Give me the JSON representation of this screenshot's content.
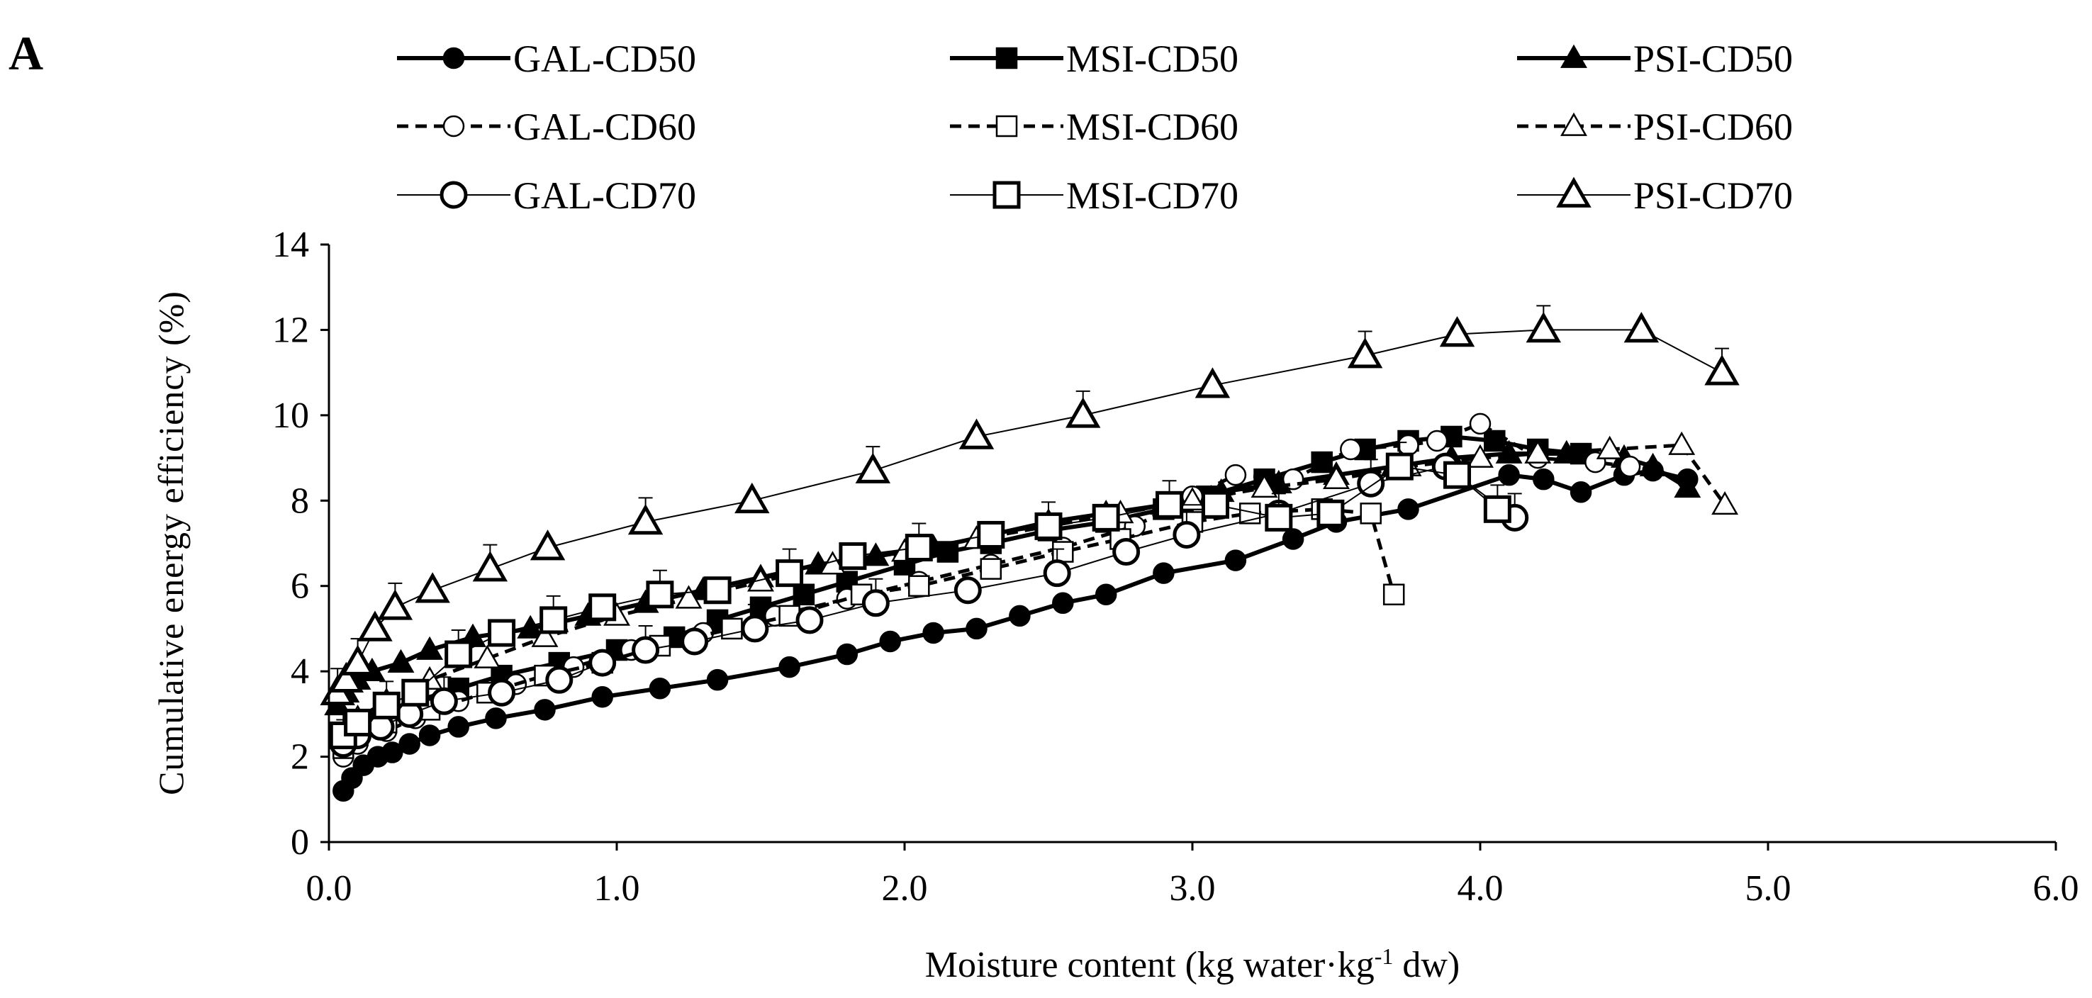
{
  "panel_label": "A",
  "chart_data": {
    "type": "line",
    "title": "",
    "xlabel": {
      "pre": "Moisture content (kg water·kg",
      "sup": "-1",
      "post": "  dw)"
    },
    "ylabel": "Cumulative energy efficiency (%)",
    "xlim": [
      0,
      6
    ],
    "ylim": [
      0,
      14
    ],
    "xticks": [
      0,
      1,
      2,
      3,
      4,
      5,
      6
    ],
    "xtick_labels": [
      "0.0",
      "1.0",
      "2.0",
      "3.0",
      "4.0",
      "5.0",
      "6.0"
    ],
    "yticks": [
      0,
      2,
      4,
      6,
      8,
      10,
      12,
      14
    ],
    "ytick_labels": [
      "0",
      "2",
      "4",
      "6",
      "8",
      "10",
      "12",
      "14"
    ],
    "grid": false,
    "legend_position": "top",
    "series": [
      {
        "name": "GAL-CD50",
        "marker": "circle",
        "fill": "filled",
        "line": "solid-thick",
        "large": false,
        "x": [
          0.05,
          0.08,
          0.12,
          0.17,
          0.22,
          0.28,
          0.35,
          0.45,
          0.58,
          0.75,
          0.95,
          1.15,
          1.35,
          1.6,
          1.8,
          1.95,
          2.1,
          2.25,
          2.4,
          2.55,
          2.7,
          2.9,
          3.15,
          3.35,
          3.5,
          3.75,
          4.1,
          4.22,
          4.35,
          4.5,
          4.6,
          4.72
        ],
        "y": [
          1.2,
          1.5,
          1.8,
          2.0,
          2.1,
          2.3,
          2.5,
          2.7,
          2.9,
          3.1,
          3.4,
          3.6,
          3.8,
          4.1,
          4.4,
          4.7,
          4.9,
          5.0,
          5.3,
          5.6,
          5.8,
          6.3,
          6.6,
          7.1,
          7.5,
          7.8,
          8.6,
          8.5,
          8.2,
          8.6,
          8.7,
          8.5
        ]
      },
      {
        "name": "MSI-CD50",
        "marker": "square",
        "fill": "filled",
        "line": "solid-thick",
        "large": false,
        "x": [
          0.05,
          0.08,
          0.12,
          0.2,
          0.3,
          0.45,
          0.6,
          0.8,
          1.0,
          1.2,
          1.35,
          1.5,
          1.65,
          1.8,
          2.0,
          2.15,
          2.3,
          2.5,
          2.7,
          2.9,
          3.05,
          3.25,
          3.45,
          3.6,
          3.75,
          3.9,
          4.05,
          4.2,
          4.35
        ],
        "y": [
          2.3,
          2.5,
          2.8,
          3.0,
          3.3,
          3.6,
          3.9,
          4.2,
          4.5,
          4.8,
          5.2,
          5.5,
          5.8,
          6.1,
          6.5,
          6.8,
          7.0,
          7.3,
          7.5,
          7.8,
          8.1,
          8.5,
          8.9,
          9.2,
          9.4,
          9.5,
          9.4,
          9.2,
          9.1
        ]
      },
      {
        "name": "PSI-CD50",
        "marker": "triangle",
        "fill": "filled",
        "line": "solid-thick",
        "large": false,
        "x": [
          0.03,
          0.06,
          0.1,
          0.15,
          0.25,
          0.35,
          0.5,
          0.7,
          0.9,
          1.1,
          1.3,
          1.5,
          1.7,
          1.9,
          2.1,
          2.3,
          2.5,
          2.7,
          2.9,
          3.1,
          3.3,
          3.5,
          3.7,
          3.9,
          4.1,
          4.3,
          4.5,
          4.6,
          4.72
        ],
        "y": [
          3.2,
          3.5,
          3.8,
          4.0,
          4.2,
          4.5,
          4.8,
          5.0,
          5.3,
          5.6,
          5.9,
          6.2,
          6.5,
          6.7,
          6.9,
          7.2,
          7.5,
          7.7,
          7.9,
          8.2,
          8.4,
          8.6,
          8.8,
          9.0,
          9.1,
          9.1,
          9.0,
          8.8,
          8.3
        ]
      },
      {
        "name": "GAL-CD60",
        "marker": "circle",
        "fill": "open",
        "line": "dashed",
        "large": false,
        "x": [
          0.05,
          0.1,
          0.2,
          0.3,
          0.45,
          0.65,
          0.85,
          1.05,
          1.3,
          1.55,
          1.8,
          2.05,
          2.3,
          2.55,
          2.8,
          3.0,
          3.15,
          3.35,
          3.55,
          3.75,
          3.85,
          4.0,
          4.2,
          4.4,
          4.52
        ],
        "y": [
          2.0,
          2.3,
          2.6,
          2.9,
          3.3,
          3.7,
          4.1,
          4.5,
          4.9,
          5.3,
          5.7,
          6.1,
          6.5,
          6.9,
          7.4,
          8.1,
          8.6,
          8.5,
          9.2,
          9.3,
          9.4,
          9.8,
          9.0,
          8.9,
          8.8
        ]
      },
      {
        "name": "MSI-CD60",
        "marker": "square",
        "fill": "open",
        "line": "dashed",
        "large": false,
        "x": [
          0.05,
          0.1,
          0.2,
          0.35,
          0.55,
          0.75,
          0.95,
          1.15,
          1.4,
          1.6,
          1.85,
          2.05,
          2.3,
          2.55,
          2.75,
          3.0,
          3.2,
          3.45,
          3.62,
          3.7
        ],
        "y": [
          2.2,
          2.5,
          2.8,
          3.1,
          3.5,
          3.9,
          4.2,
          4.6,
          5.0,
          5.3,
          5.8,
          6.0,
          6.4,
          6.8,
          7.1,
          7.5,
          7.7,
          7.8,
          7.7,
          5.8
        ]
      },
      {
        "name": "PSI-CD60",
        "marker": "triangle",
        "fill": "open",
        "line": "dashed",
        "large": false,
        "x": [
          0.05,
          0.1,
          0.2,
          0.35,
          0.55,
          0.75,
          1.0,
          1.25,
          1.5,
          1.75,
          2.0,
          2.25,
          2.5,
          2.75,
          3.0,
          3.25,
          3.5,
          3.75,
          4.0,
          4.2,
          4.45,
          4.7,
          4.85
        ],
        "y": [
          2.5,
          2.9,
          3.3,
          3.8,
          4.3,
          4.8,
          5.3,
          5.7,
          6.1,
          6.5,
          6.8,
          7.1,
          7.4,
          7.7,
          8.0,
          8.3,
          8.5,
          8.8,
          9.0,
          9.1,
          9.2,
          9.3,
          7.9
        ]
      },
      {
        "name": "GAL-CD70",
        "marker": "circle",
        "fill": "open",
        "line": "thin",
        "large": true,
        "x": [
          0.05,
          0.1,
          0.18,
          0.28,
          0.4,
          0.6,
          0.8,
          0.95,
          1.1,
          1.27,
          1.48,
          1.67,
          1.9,
          2.22,
          2.53,
          2.77,
          2.98,
          3.3,
          3.62,
          3.88,
          4.12
        ],
        "y": [
          2.3,
          2.5,
          2.7,
          3.0,
          3.3,
          3.5,
          3.8,
          4.2,
          4.5,
          4.7,
          5.0,
          5.2,
          5.6,
          5.9,
          6.3,
          6.8,
          7.2,
          7.7,
          8.4,
          8.8,
          7.6
        ]
      },
      {
        "name": "MSI-CD70",
        "marker": "square",
        "fill": "open",
        "line": "thin",
        "large": true,
        "x": [
          0.05,
          0.1,
          0.2,
          0.3,
          0.45,
          0.6,
          0.78,
          0.95,
          1.15,
          1.35,
          1.6,
          1.82,
          2.05,
          2.3,
          2.5,
          2.7,
          2.92,
          3.08,
          3.3,
          3.48,
          3.72,
          3.92,
          4.06
        ],
        "y": [
          2.5,
          2.8,
          3.2,
          3.5,
          4.4,
          4.9,
          5.2,
          5.5,
          5.8,
          5.9,
          6.3,
          6.7,
          6.9,
          7.2,
          7.4,
          7.6,
          7.9,
          7.9,
          7.6,
          7.7,
          8.8,
          8.6,
          7.8
        ]
      },
      {
        "name": "PSI-CD70",
        "marker": "triangle",
        "fill": "open",
        "line": "thin",
        "large": true,
        "x": [
          0.03,
          0.06,
          0.1,
          0.16,
          0.23,
          0.36,
          0.56,
          0.76,
          1.1,
          1.47,
          1.89,
          2.25,
          2.62,
          3.07,
          3.6,
          3.92,
          4.22,
          4.56,
          4.84
        ],
        "y": [
          3.5,
          3.8,
          4.2,
          5.0,
          5.5,
          5.9,
          6.4,
          6.9,
          7.5,
          8.0,
          8.7,
          9.5,
          10.0,
          10.7,
          11.4,
          11.9,
          12.0,
          12.0,
          11.0
        ]
      }
    ]
  }
}
